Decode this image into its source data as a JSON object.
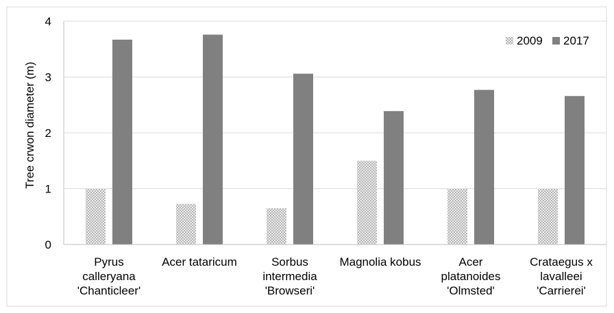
{
  "chart_data": {
    "type": "bar",
    "title": "",
    "xlabel": "",
    "ylabel": "Tree crwon diameter (m)",
    "ylim": [
      0,
      4
    ],
    "yticks": [
      0,
      1,
      2,
      3,
      4
    ],
    "grid": true,
    "legend_position": "top-right",
    "categories": [
      [
        "Pyrus",
        "calleryana",
        "'Chanticleer'"
      ],
      [
        "Acer tataricum"
      ],
      [
        "Sorbus",
        "intermedia",
        "'Browseri'"
      ],
      [
        "Magnolia kobus"
      ],
      [
        "Acer",
        "platanoides",
        "'Olmsted'"
      ],
      [
        "Crataegus x",
        "lavalleei",
        "'Carrierei'"
      ]
    ],
    "series": [
      {
        "name": "2009",
        "pattern": "dotted",
        "color": "#d9d9d9",
        "values": [
          1.0,
          0.73,
          0.65,
          1.5,
          1.0,
          1.0
        ]
      },
      {
        "name": "2017",
        "pattern": "solid",
        "color": "#808080",
        "values": [
          3.67,
          3.76,
          3.06,
          2.39,
          2.77,
          2.66
        ]
      }
    ]
  }
}
